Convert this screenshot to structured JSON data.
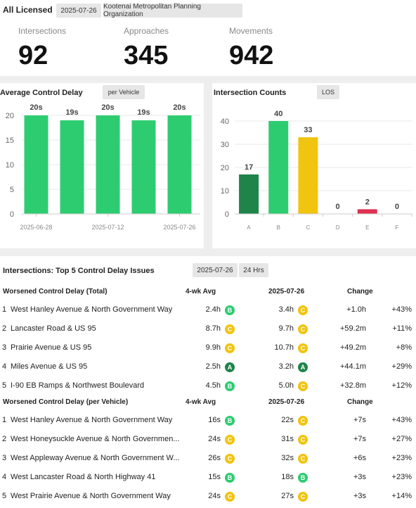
{
  "header": {
    "title": "All Licensed",
    "date": "2025-07-26",
    "org": "Kootenai Metropolitan Planning Organization"
  },
  "kpis": [
    {
      "label": "Intersections",
      "value": "92"
    },
    {
      "label": "Approaches",
      "value": "345"
    },
    {
      "label": "Movements",
      "value": "942"
    }
  ],
  "delay_panel": {
    "title": "Average Control Delay",
    "tag": "per Vehicle"
  },
  "counts_panel": {
    "title": "Intersection Counts",
    "tag": "LOS"
  },
  "colors": {
    "green": "#2ecc71",
    "dark_green": "#1e8449",
    "yellow": "#f1c40f",
    "red": "#e03050",
    "gray": "#d0d0d0"
  },
  "chart_data": [
    {
      "type": "bar",
      "title": "Average Control Delay",
      "categories": [
        "2025-06-28",
        "",
        "2025-07-12",
        "",
        "2025-07-26"
      ],
      "tick_labels": [
        "2025-06-28",
        "2025-07-12",
        "2025-07-26"
      ],
      "values": [
        20,
        19,
        20,
        19,
        20
      ],
      "data_labels": [
        "20s",
        "19s",
        "20s",
        "19s",
        "20s"
      ],
      "yticks": [
        "0",
        "5",
        "10",
        "15",
        "20"
      ],
      "ylim": [
        0,
        22
      ],
      "grid": true
    },
    {
      "type": "bar",
      "title": "Intersection Counts",
      "categories": [
        "A",
        "B",
        "C",
        "D",
        "E",
        "F"
      ],
      "values": [
        17,
        40,
        33,
        0,
        2,
        0
      ],
      "data_labels": [
        "17",
        "40",
        "33",
        "0",
        "2",
        "0"
      ],
      "bar_colors": [
        "#1e8449",
        "#2ecc71",
        "#f1c40f",
        "#d0d0d0",
        "#e03050",
        "#d0d0d0"
      ],
      "yticks": [
        "0",
        "10",
        "20",
        "30",
        "40"
      ],
      "ylim": [
        0,
        44
      ],
      "grid": true
    }
  ],
  "issues": {
    "title": "Intersections: Top 5 Control Delay Issues",
    "date": "2025-07-26",
    "period": "24 Hrs",
    "sections": [
      {
        "heading": "Worsened Control Delay (Total)",
        "col_avg": "4-wk Avg",
        "col_date": "2025-07-26",
        "col_change": "Change",
        "rows": [
          {
            "rank": "1",
            "name": "West Hanley Avenue & North Government Way",
            "avg": "2.4h",
            "avg_los": "B",
            "cur": "3.4h",
            "cur_los": "C",
            "change": "+1.0h",
            "pct": "+43%"
          },
          {
            "rank": "2",
            "name": "Lancaster Road & US 95",
            "avg": "8.7h",
            "avg_los": "C",
            "cur": "9.7h",
            "cur_los": "C",
            "change": "+59.2m",
            "pct": "+11%"
          },
          {
            "rank": "3",
            "name": "Prairie Avenue & US 95",
            "avg": "9.9h",
            "avg_los": "C",
            "cur": "10.7h",
            "cur_los": "C",
            "change": "+49.2m",
            "pct": "+8%"
          },
          {
            "rank": "4",
            "name": "Miles Avenue & US 95",
            "avg": "2.5h",
            "avg_los": "A",
            "cur": "3.2h",
            "cur_los": "A",
            "change": "+44.1m",
            "pct": "+29%"
          },
          {
            "rank": "5",
            "name": "I-90 EB Ramps & Northwest Boulevard",
            "avg": "4.5h",
            "avg_los": "B",
            "cur": "5.0h",
            "cur_los": "C",
            "change": "+32.8m",
            "pct": "+12%"
          }
        ]
      },
      {
        "heading": "Worsened Control Delay (per Vehicle)",
        "col_avg": "4-wk Avg",
        "col_date": "2025-07-26",
        "col_change": "Change",
        "rows": [
          {
            "rank": "1",
            "name": "West Hanley Avenue & North Government Way",
            "avg": "16s",
            "avg_los": "B",
            "cur": "22s",
            "cur_los": "C",
            "change": "+7s",
            "pct": "+43%"
          },
          {
            "rank": "2",
            "name": "West Honeysuckle Avenue & North Governmen...",
            "avg": "24s",
            "avg_los": "C",
            "cur": "31s",
            "cur_los": "C",
            "change": "+7s",
            "pct": "+27%"
          },
          {
            "rank": "3",
            "name": "West Appleway Avenue & North Government W...",
            "avg": "26s",
            "avg_los": "C",
            "cur": "32s",
            "cur_los": "C",
            "change": "+6s",
            "pct": "+23%"
          },
          {
            "rank": "4",
            "name": "West Lancaster Road & North Highway 41",
            "avg": "15s",
            "avg_los": "B",
            "cur": "18s",
            "cur_los": "B",
            "change": "+3s",
            "pct": "+23%"
          },
          {
            "rank": "5",
            "name": "West Prairie Avenue & North Government Way",
            "avg": "24s",
            "avg_los": "C",
            "cur": "27s",
            "cur_los": "C",
            "change": "+3s",
            "pct": "+14%"
          }
        ]
      }
    ]
  }
}
